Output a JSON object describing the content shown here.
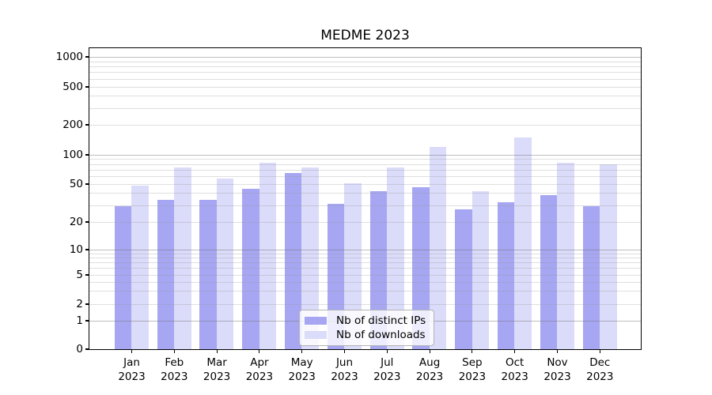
{
  "figure": {
    "title": "MEDME 2023"
  },
  "legend": {
    "item1": "Nb of distinct IPs",
    "item2": "Nb of downloads"
  },
  "chart_data": {
    "type": "bar",
    "title": "MEDME 2023",
    "categories": [
      "Jan",
      "Feb",
      "Mar",
      "Apr",
      "May",
      "Jun",
      "Jul",
      "Aug",
      "Sep",
      "Oct",
      "Nov",
      "Dec"
    ],
    "category_year": "2023",
    "series": [
      {
        "name": "Nb of distinct IPs",
        "color": "#a6a6f2",
        "values": [
          29,
          34,
          34,
          44,
          65,
          31,
          42,
          46,
          27,
          32,
          38,
          29
        ]
      },
      {
        "name": "Nb of downloads",
        "color": "#dbdbfa",
        "values": [
          48,
          74,
          57,
          83,
          74,
          51,
          74,
          120,
          42,
          150,
          83,
          80
        ]
      }
    ],
    "xlabel": "",
    "ylabel": "",
    "yscale": "symlog",
    "ylim": [
      0,
      1230
    ],
    "ytick_labels": [
      "1000",
      "500",
      "200",
      "100",
      "50",
      "20",
      "10",
      "5",
      "2",
      "1",
      "0"
    ],
    "ytick_values": [
      1000,
      500,
      200,
      100,
      50,
      20,
      10,
      5,
      2,
      1,
      0
    ],
    "decade_grid_values": [
      1000,
      100,
      10,
      1
    ],
    "minor_grid_values": [
      900,
      800,
      700,
      600,
      400,
      300,
      90,
      80,
      70,
      60,
      40,
      30,
      9,
      8,
      7,
      6,
      4,
      3
    ],
    "grid": true,
    "legend_position": "lower center",
    "legend_labels": [
      "Nb of distinct IPs",
      "Nb of downloads"
    ]
  }
}
